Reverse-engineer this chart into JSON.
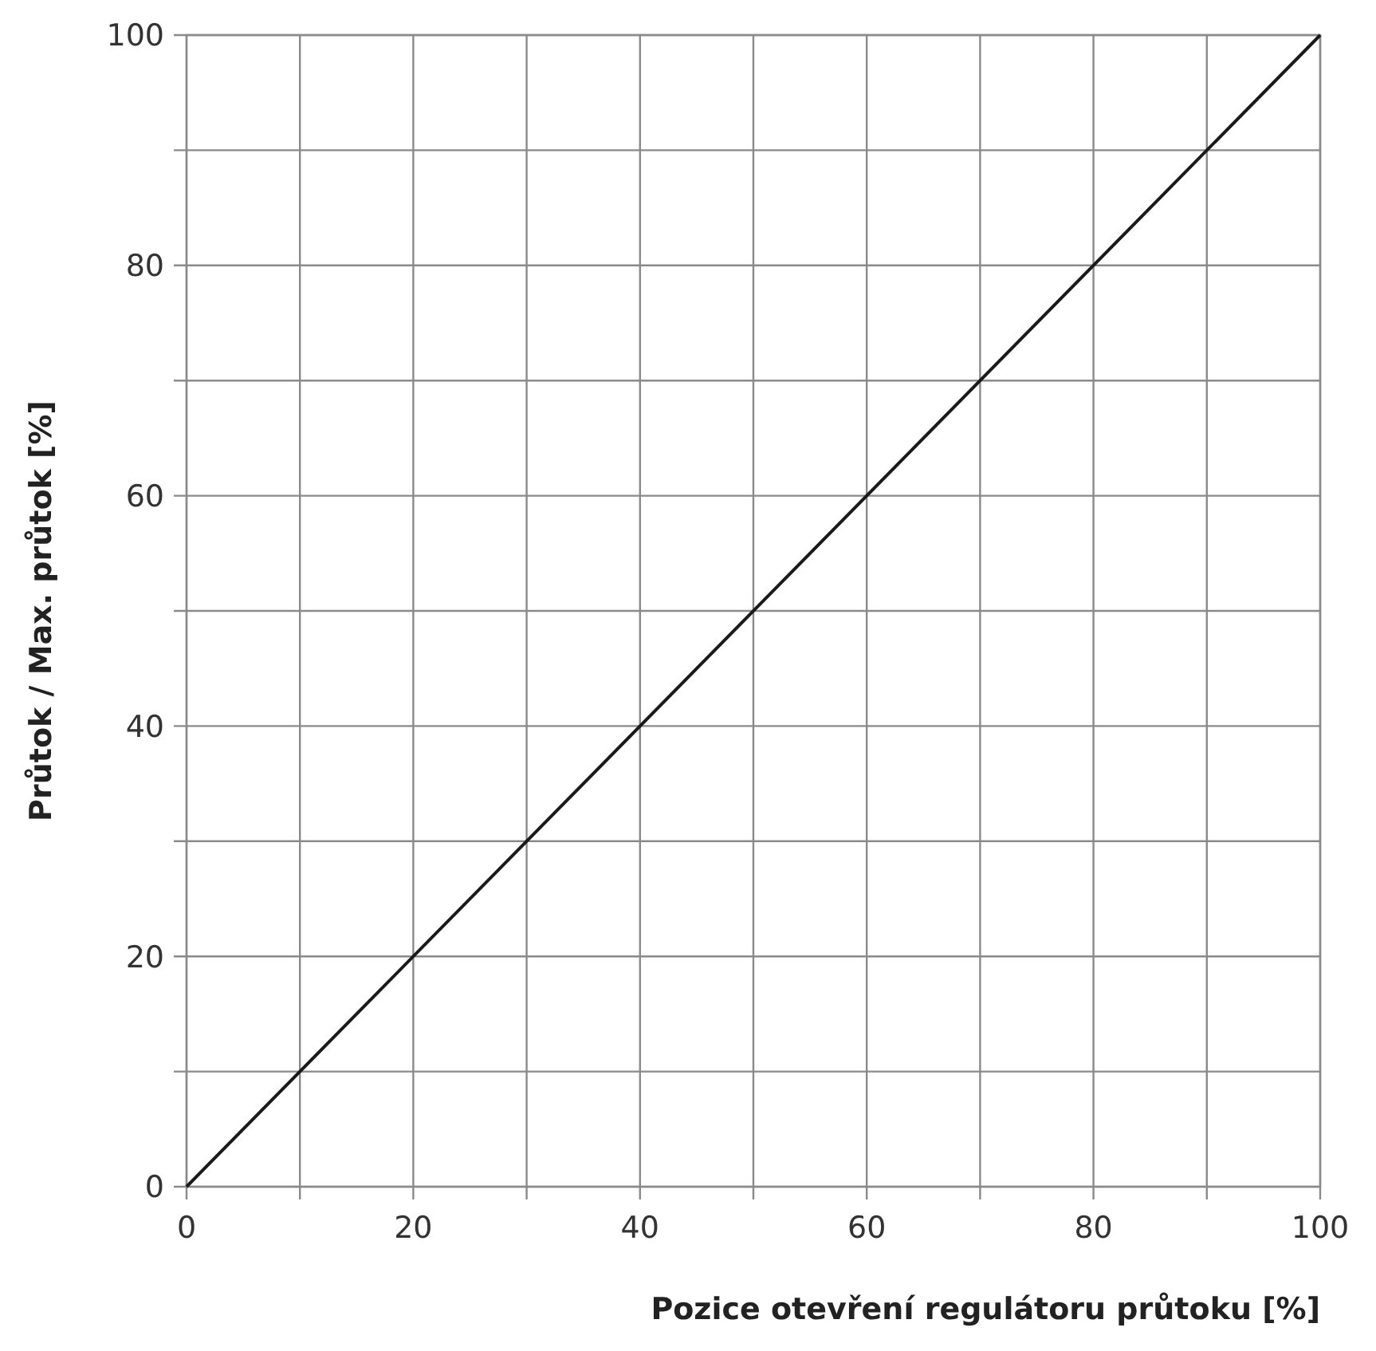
{
  "chart_data": {
    "type": "line",
    "xlabel": "Pozice otevření regulátoru průtoku [%]",
    "ylabel": "Průtok / Max. průtok [%]",
    "x": [
      0,
      100
    ],
    "series": [
      {
        "color": "#1a1a1a",
        "values": [
          0,
          100
        ]
      }
    ],
    "xlim": [
      0,
      100
    ],
    "ylim": [
      0,
      100
    ],
    "xticks": [
      0,
      {
        "value": 10,
        "label": null
      },
      20,
      {
        "value": 30,
        "label": null
      },
      40,
      {
        "value": 50,
        "label": null
      },
      60,
      {
        "value": 70,
        "label": null
      },
      80,
      {
        "value": 90,
        "label": null
      },
      100
    ],
    "yticks": [
      0,
      {
        "value": 10,
        "label": null
      },
      20,
      {
        "value": 30,
        "label": null
      },
      40,
      {
        "value": 50,
        "label": null
      },
      60,
      {
        "value": 70,
        "label": null
      },
      80,
      {
        "value": 90,
        "label": null
      },
      100
    ],
    "grid": true,
    "marker": "none",
    "line_style": "solid"
  }
}
